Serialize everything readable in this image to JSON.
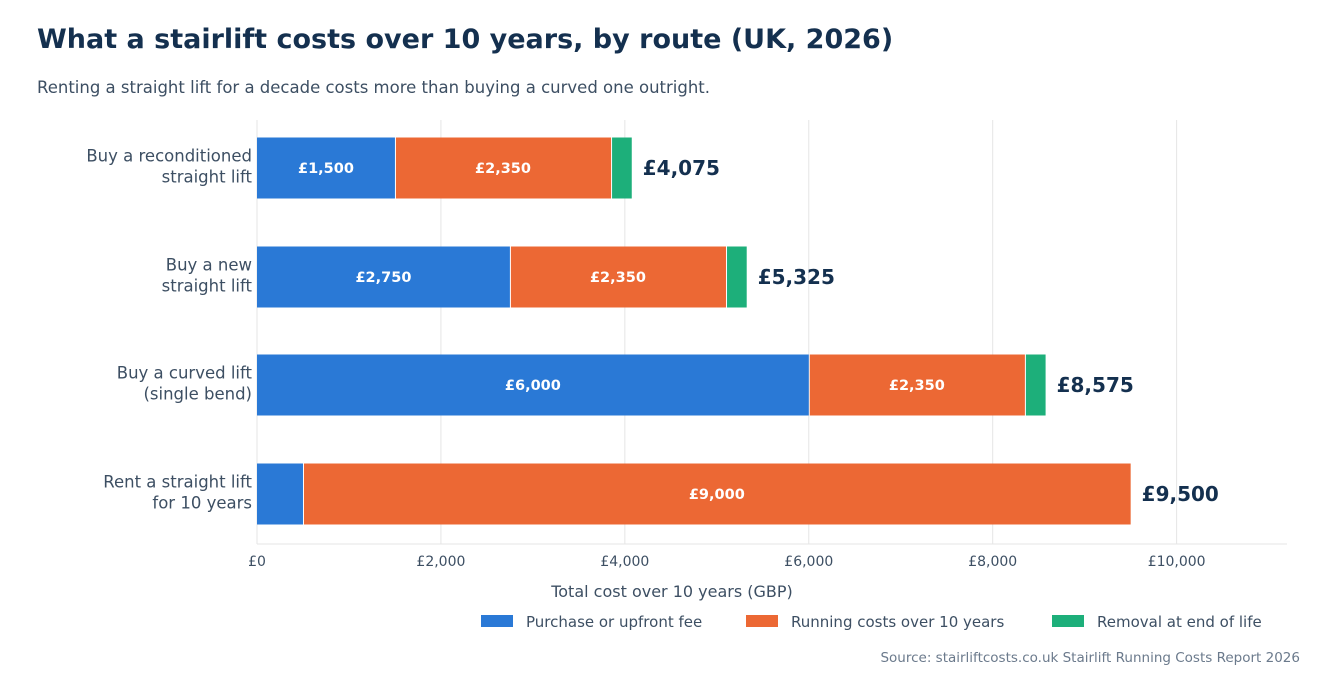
{
  "title": "What a stairlift costs over 10 years, by route (UK, 2026)",
  "subtitle": "Renting a straight lift for a decade costs more than buying a curved one outright.",
  "source": "Source: stairliftcosts.co.uk Stairlift Running Costs Report 2026",
  "colors": {
    "purchase": "#2a79d6",
    "running": "#ec6834",
    "removal": "#1daf7a",
    "grid": "#e5e5e5",
    "text": "#3d4f63",
    "title": "#14304f"
  },
  "chart_data": {
    "type": "bar",
    "orientation": "horizontal",
    "stacked": true,
    "categories": [
      [
        "Buy a reconditioned",
        "straight lift"
      ],
      [
        "Buy a new",
        "straight lift"
      ],
      [
        "Buy a curved lift",
        "(single bend)"
      ],
      [
        "Rent a straight lift",
        "for 10 years"
      ]
    ],
    "series": [
      {
        "name": "Purchase or upfront fee",
        "color": "#2a79d6",
        "values": [
          1500,
          2750,
          6000,
          500
        ],
        "labels": [
          "£1,500",
          "£2,750",
          "£6,000",
          ""
        ]
      },
      {
        "name": "Running costs over 10 years",
        "color": "#ec6834",
        "values": [
          2350,
          2350,
          2350,
          9000
        ],
        "labels": [
          "£2,350",
          "£2,350",
          "£2,350",
          "£9,000"
        ]
      },
      {
        "name": "Removal at end of life",
        "color": "#1daf7a",
        "values": [
          225,
          225,
          225,
          0
        ],
        "labels": [
          "",
          "",
          "",
          ""
        ]
      }
    ],
    "totals": [
      "£4,075",
      "£5,325",
      "£8,575",
      "£9,500"
    ],
    "xlabel": "Total cost over 10 years (GBP)",
    "xlim": [
      0,
      11200
    ],
    "xticks": [
      0,
      2000,
      4000,
      6000,
      8000,
      10000
    ],
    "xtick_labels": [
      "£0",
      "£2,000",
      "£4,000",
      "£6,000",
      "£8,000",
      "£10,000"
    ],
    "grid": "vertical",
    "legend_position": "bottom-right"
  }
}
